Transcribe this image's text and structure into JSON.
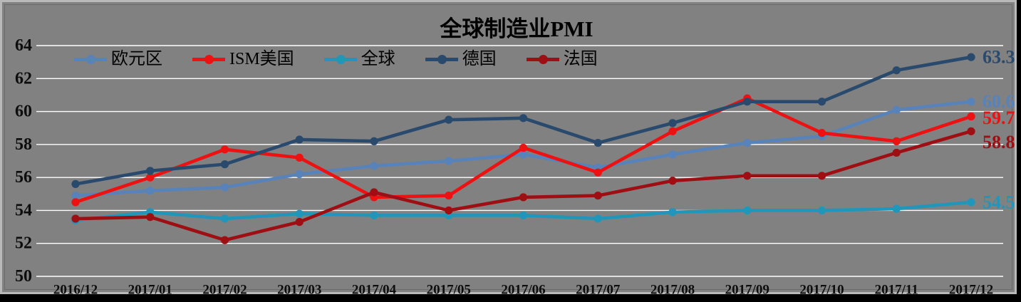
{
  "chart_data": {
    "type": "line",
    "title": "全球制造业PMI",
    "categories": [
      "2016/12",
      "2017/01",
      "2017/02",
      "2017/03",
      "2017/04",
      "2017/05",
      "2017/06",
      "2017/07",
      "2017/08",
      "2017/09",
      "2017/10",
      "2017/11",
      "2017/12"
    ],
    "y_ticks": [
      64,
      62,
      60,
      58,
      56,
      54,
      52,
      50
    ],
    "ylim": [
      50,
      64
    ],
    "grid": "horizontal-white-lines",
    "legend_position": "top-left-row",
    "series": [
      {
        "name": "欧元区",
        "color": "#5782ba",
        "values": [
          54.9,
          55.2,
          55.4,
          56.2,
          56.7,
          57.0,
          57.4,
          56.6,
          57.4,
          58.1,
          58.5,
          60.1,
          60.6
        ],
        "end_label": "60.6"
      },
      {
        "name": "ISM美国",
        "color": "#ee1111",
        "values": [
          54.5,
          56.0,
          57.7,
          57.2,
          54.8,
          54.9,
          57.8,
          56.3,
          58.8,
          60.8,
          58.7,
          58.2,
          59.7
        ],
        "end_label": "59.7"
      },
      {
        "name": "全球",
        "color": "#2097ba",
        "values": [
          53.4,
          53.9,
          53.5,
          53.8,
          53.7,
          53.7,
          53.7,
          53.5,
          53.9,
          54.0,
          54.0,
          54.1,
          54.5
        ],
        "end_label": "54.5"
      },
      {
        "name": "德国",
        "color": "#294a6d",
        "values": [
          55.6,
          56.4,
          56.8,
          58.3,
          58.2,
          59.5,
          59.6,
          58.1,
          59.3,
          60.6,
          60.6,
          62.5,
          63.3
        ],
        "end_label": "63.3"
      },
      {
        "name": "法国",
        "color": "#9e0e12",
        "values": [
          53.5,
          53.6,
          52.2,
          53.3,
          55.1,
          54.0,
          54.8,
          54.9,
          55.8,
          56.1,
          56.1,
          57.5,
          58.8
        ],
        "end_label": "58.8"
      }
    ]
  },
  "colors": {
    "background": "#818181",
    "gridline": "#ffffff",
    "axis_text": "#0d0d0d",
    "title_text": "#000000",
    "frame": "#b9b9b9",
    "bottom_bar": "#000000"
  }
}
